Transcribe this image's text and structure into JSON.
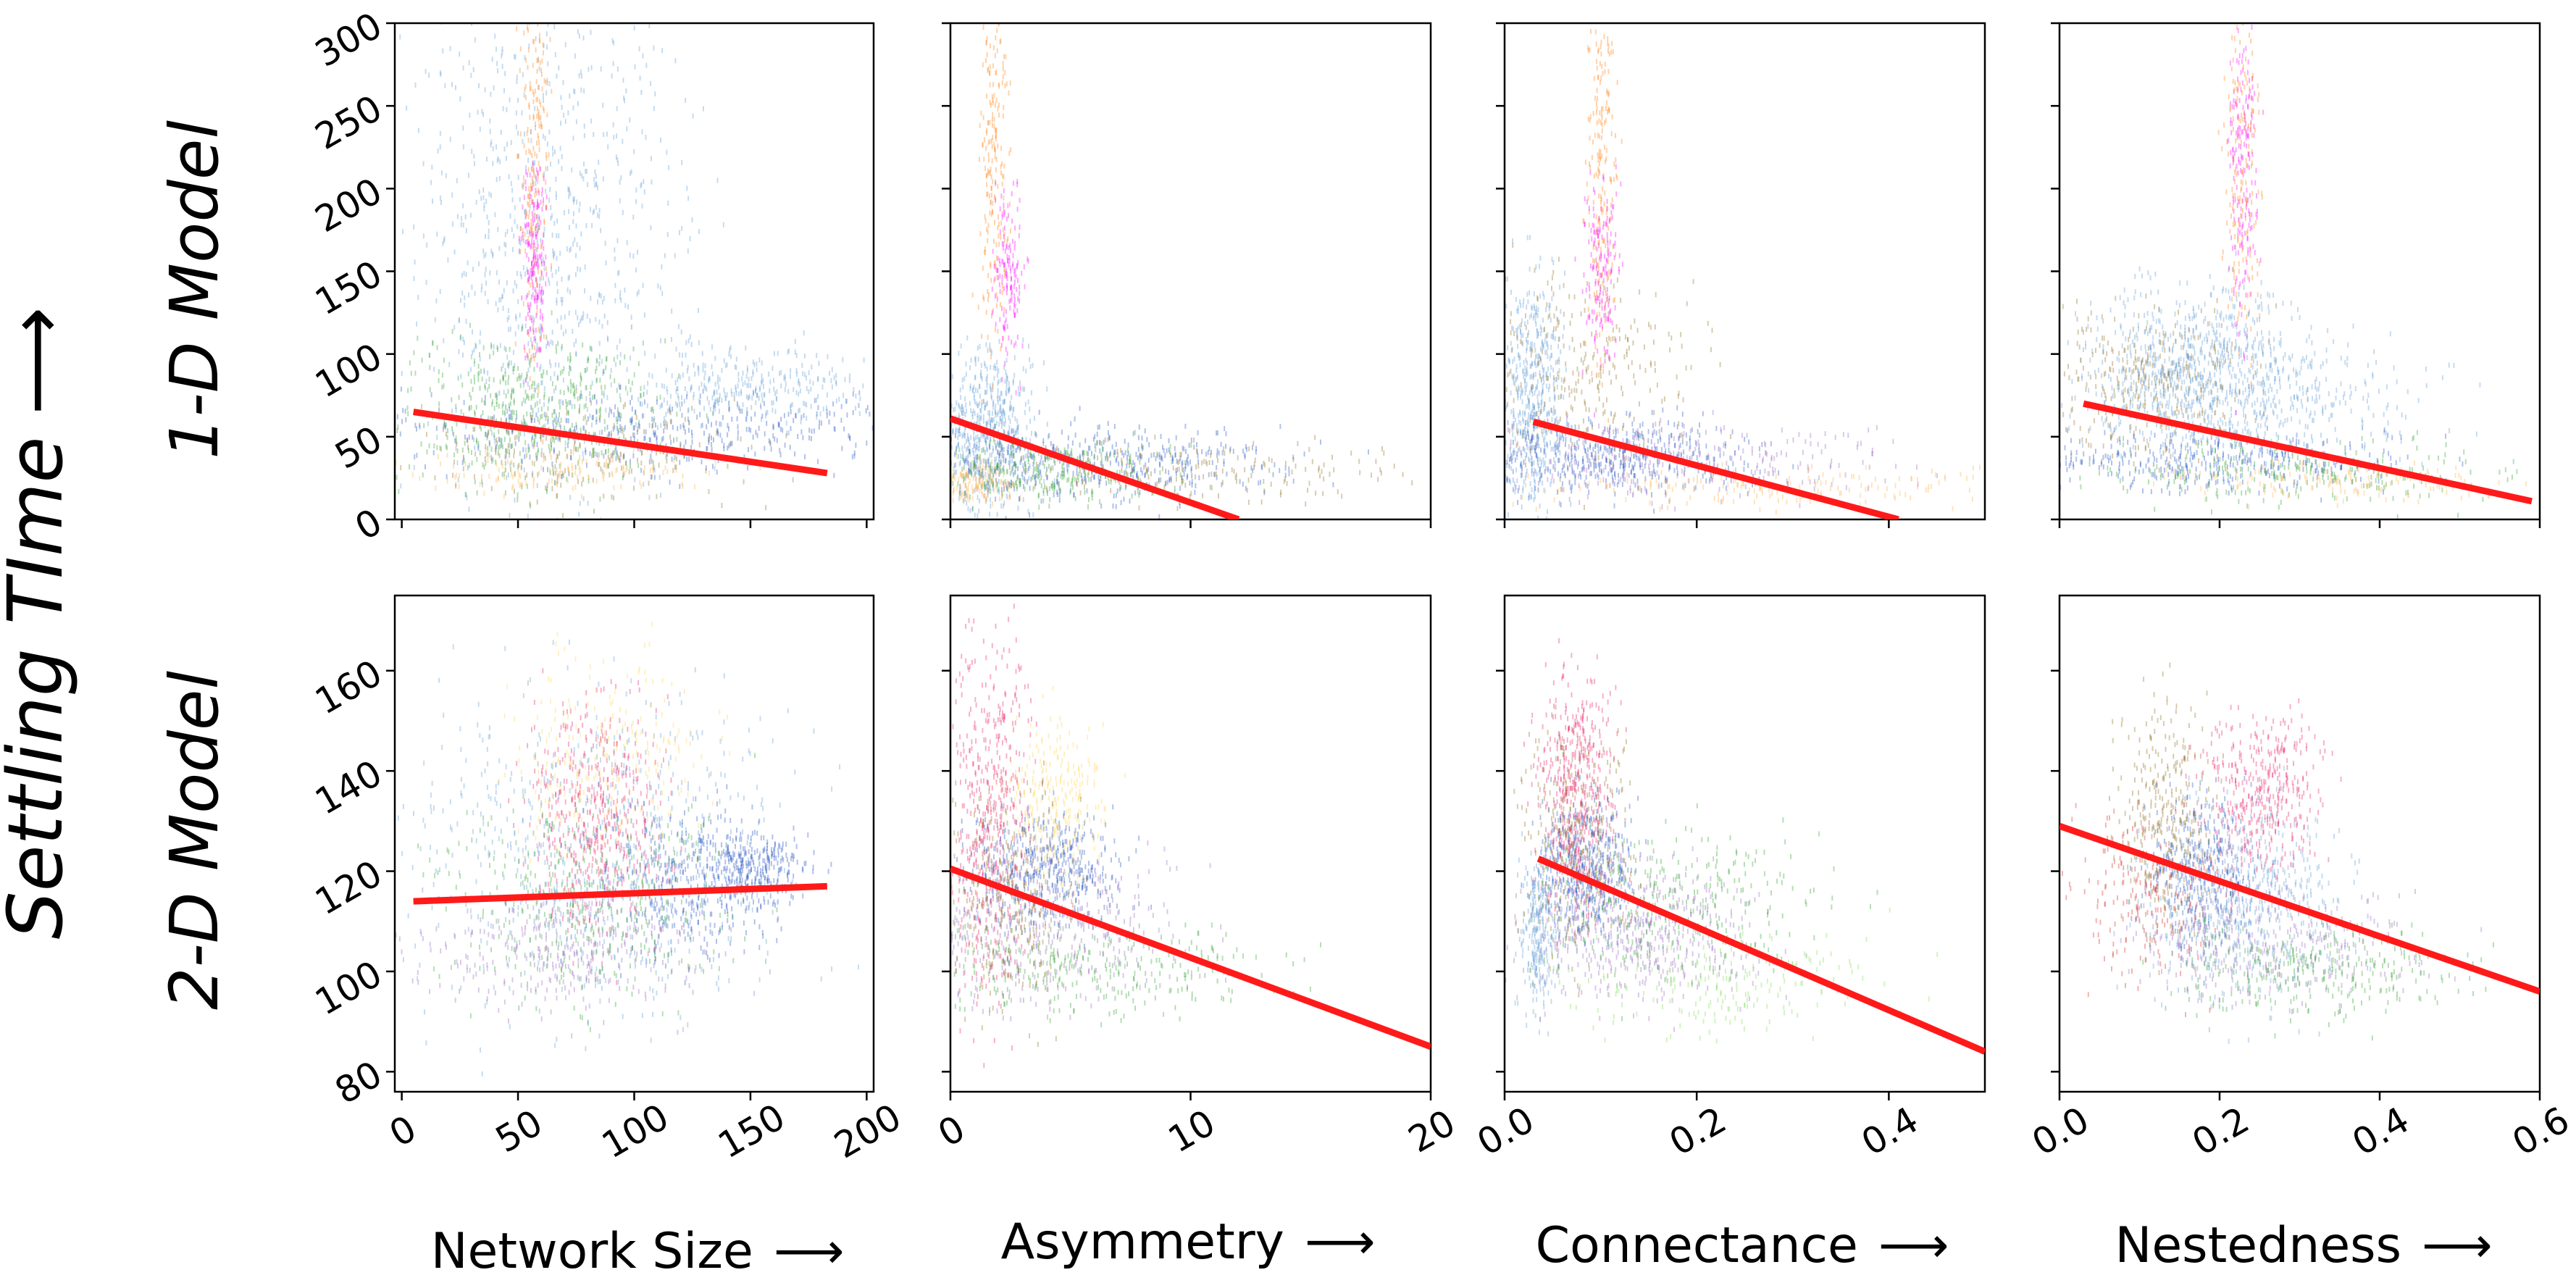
{
  "figure": {
    "ylabel": "Settling TIme",
    "arrow": "⟶",
    "row_labels": [
      "1-D Model",
      "2-D Model"
    ],
    "xlabels": [
      "Network Size",
      "Asymmetry",
      "Connectance",
      "Nestedness"
    ]
  },
  "colors": {
    "fit_line": "#ff1a1a",
    "palette": [
      "#5b9bd5",
      "#ff7f0e",
      "#e377c2",
      "#ff00ff",
      "#2ca02c",
      "#1f4fbf",
      "#9467bd",
      "#8c6d1f",
      "#ffd54f",
      "#d62728",
      "#e91e63",
      "#7fdc5a",
      "#4aa3df",
      "#ffb347",
      "#17becf"
    ]
  },
  "chart_data": [
    {
      "type": "scatter",
      "id": "1d-size",
      "row": "1-D Model",
      "xlabel": "Network Size",
      "ylabel": "Settling TIme",
      "xlim": [
        -3,
        203
      ],
      "ylim": [
        0,
        300
      ],
      "xticks": [
        0,
        50,
        100,
        150,
        200
      ],
      "xtick_labels": [
        "0",
        "50",
        "100",
        "150",
        "200"
      ],
      "yticks": [
        0,
        50,
        100,
        150,
        200,
        250,
        300
      ],
      "ytick_labels": [
        "0",
        "50",
        "100",
        "150",
        "200",
        "250",
        "300"
      ],
      "fit_line": {
        "x": [
          5,
          183
        ],
        "y": [
          65,
          28
        ]
      }
    },
    {
      "type": "scatter",
      "id": "1d-asym",
      "row": "1-D Model",
      "xlabel": "Asymmetry",
      "ylabel": "Settling TIme",
      "xlim": [
        0,
        20
      ],
      "ylim": [
        0,
        300
      ],
      "xticks": [
        0,
        10,
        20
      ],
      "xtick_labels": [
        "0",
        "10",
        "20"
      ],
      "yticks": [
        0,
        50,
        100,
        150,
        200,
        250,
        300
      ],
      "ytick_labels": [],
      "fit_line": {
        "x": [
          0,
          12
        ],
        "y": [
          61,
          0
        ]
      }
    },
    {
      "type": "scatter",
      "id": "1d-conn",
      "row": "1-D Model",
      "xlabel": "Connectance",
      "ylabel": "Settling TIme",
      "xlim": [
        0,
        0.5
      ],
      "ylim": [
        0,
        300
      ],
      "xticks": [
        0.0,
        0.2,
        0.4
      ],
      "xtick_labels": [
        "0.0",
        "0.2",
        "0.4"
      ],
      "yticks": [
        0,
        50,
        100,
        150,
        200,
        250,
        300
      ],
      "ytick_labels": [],
      "fit_line": {
        "x": [
          0.03,
          0.41
        ],
        "y": [
          59,
          0
        ]
      }
    },
    {
      "type": "scatter",
      "id": "1d-nest",
      "row": "1-D Model",
      "xlabel": "Nestedness",
      "ylabel": "Settling TIme",
      "xlim": [
        0,
        0.6
      ],
      "ylim": [
        0,
        300
      ],
      "xticks": [
        0.0,
        0.2,
        0.4,
        0.6
      ],
      "xtick_labels": [
        "0.0",
        "0.2",
        "0.4",
        "0.6"
      ],
      "yticks": [
        0,
        50,
        100,
        150,
        200,
        250,
        300
      ],
      "ytick_labels": [],
      "fit_line": {
        "x": [
          0.03,
          0.59
        ],
        "y": [
          70,
          11
        ]
      }
    },
    {
      "type": "scatter",
      "id": "2d-size",
      "row": "2-D Model",
      "xlabel": "Network Size",
      "ylabel": "Settling TIme",
      "xlim": [
        -3,
        203
      ],
      "ylim": [
        76,
        175
      ],
      "xticks": [
        0,
        50,
        100,
        150,
        200
      ],
      "xtick_labels": [
        "0",
        "50",
        "100",
        "150",
        "200"
      ],
      "yticks": [
        80,
        100,
        120,
        140,
        160
      ],
      "ytick_labels": [
        "80",
        "100",
        "120",
        "140",
        "160"
      ],
      "fit_line": {
        "x": [
          5,
          183
        ],
        "y": [
          114,
          117
        ]
      }
    },
    {
      "type": "scatter",
      "id": "2d-asym",
      "row": "2-D Model",
      "xlabel": "Asymmetry",
      "ylabel": "Settling TIme",
      "xlim": [
        0,
        20
      ],
      "ylim": [
        76,
        175
      ],
      "xticks": [
        0,
        10,
        20
      ],
      "xtick_labels": [
        "0",
        "10",
        "20"
      ],
      "yticks": [
        80,
        100,
        120,
        140,
        160
      ],
      "ytick_labels": [],
      "fit_line": {
        "x": [
          0,
          20
        ],
        "y": [
          120.5,
          85
        ]
      }
    },
    {
      "type": "scatter",
      "id": "2d-conn",
      "row": "2-D Model",
      "xlabel": "Connectance",
      "ylabel": "Settling TIme",
      "xlim": [
        0,
        0.5
      ],
      "ylim": [
        76,
        175
      ],
      "xticks": [
        0.0,
        0.2,
        0.4
      ],
      "xtick_labels": [
        "0.0",
        "0.2",
        "0.4"
      ],
      "yticks": [
        80,
        100,
        120,
        140,
        160
      ],
      "ytick_labels": [],
      "fit_line": {
        "x": [
          0.035,
          0.5
        ],
        "y": [
          122.5,
          84
        ]
      }
    },
    {
      "type": "scatter",
      "id": "2d-nest",
      "row": "2-D Model",
      "xlabel": "Nestedness",
      "ylabel": "Settling TIme",
      "xlim": [
        0,
        0.6
      ],
      "ylim": [
        76,
        175
      ],
      "xticks": [
        0.0,
        0.2,
        0.4,
        0.6
      ],
      "xtick_labels": [
        "0.0",
        "0.2",
        "0.4",
        "0.6"
      ],
      "yticks": [
        80,
        100,
        120,
        140,
        160
      ],
      "ytick_labels": [],
      "fit_line": {
        "x": [
          0.0,
          0.6
        ],
        "y": [
          129,
          96
        ]
      }
    }
  ]
}
